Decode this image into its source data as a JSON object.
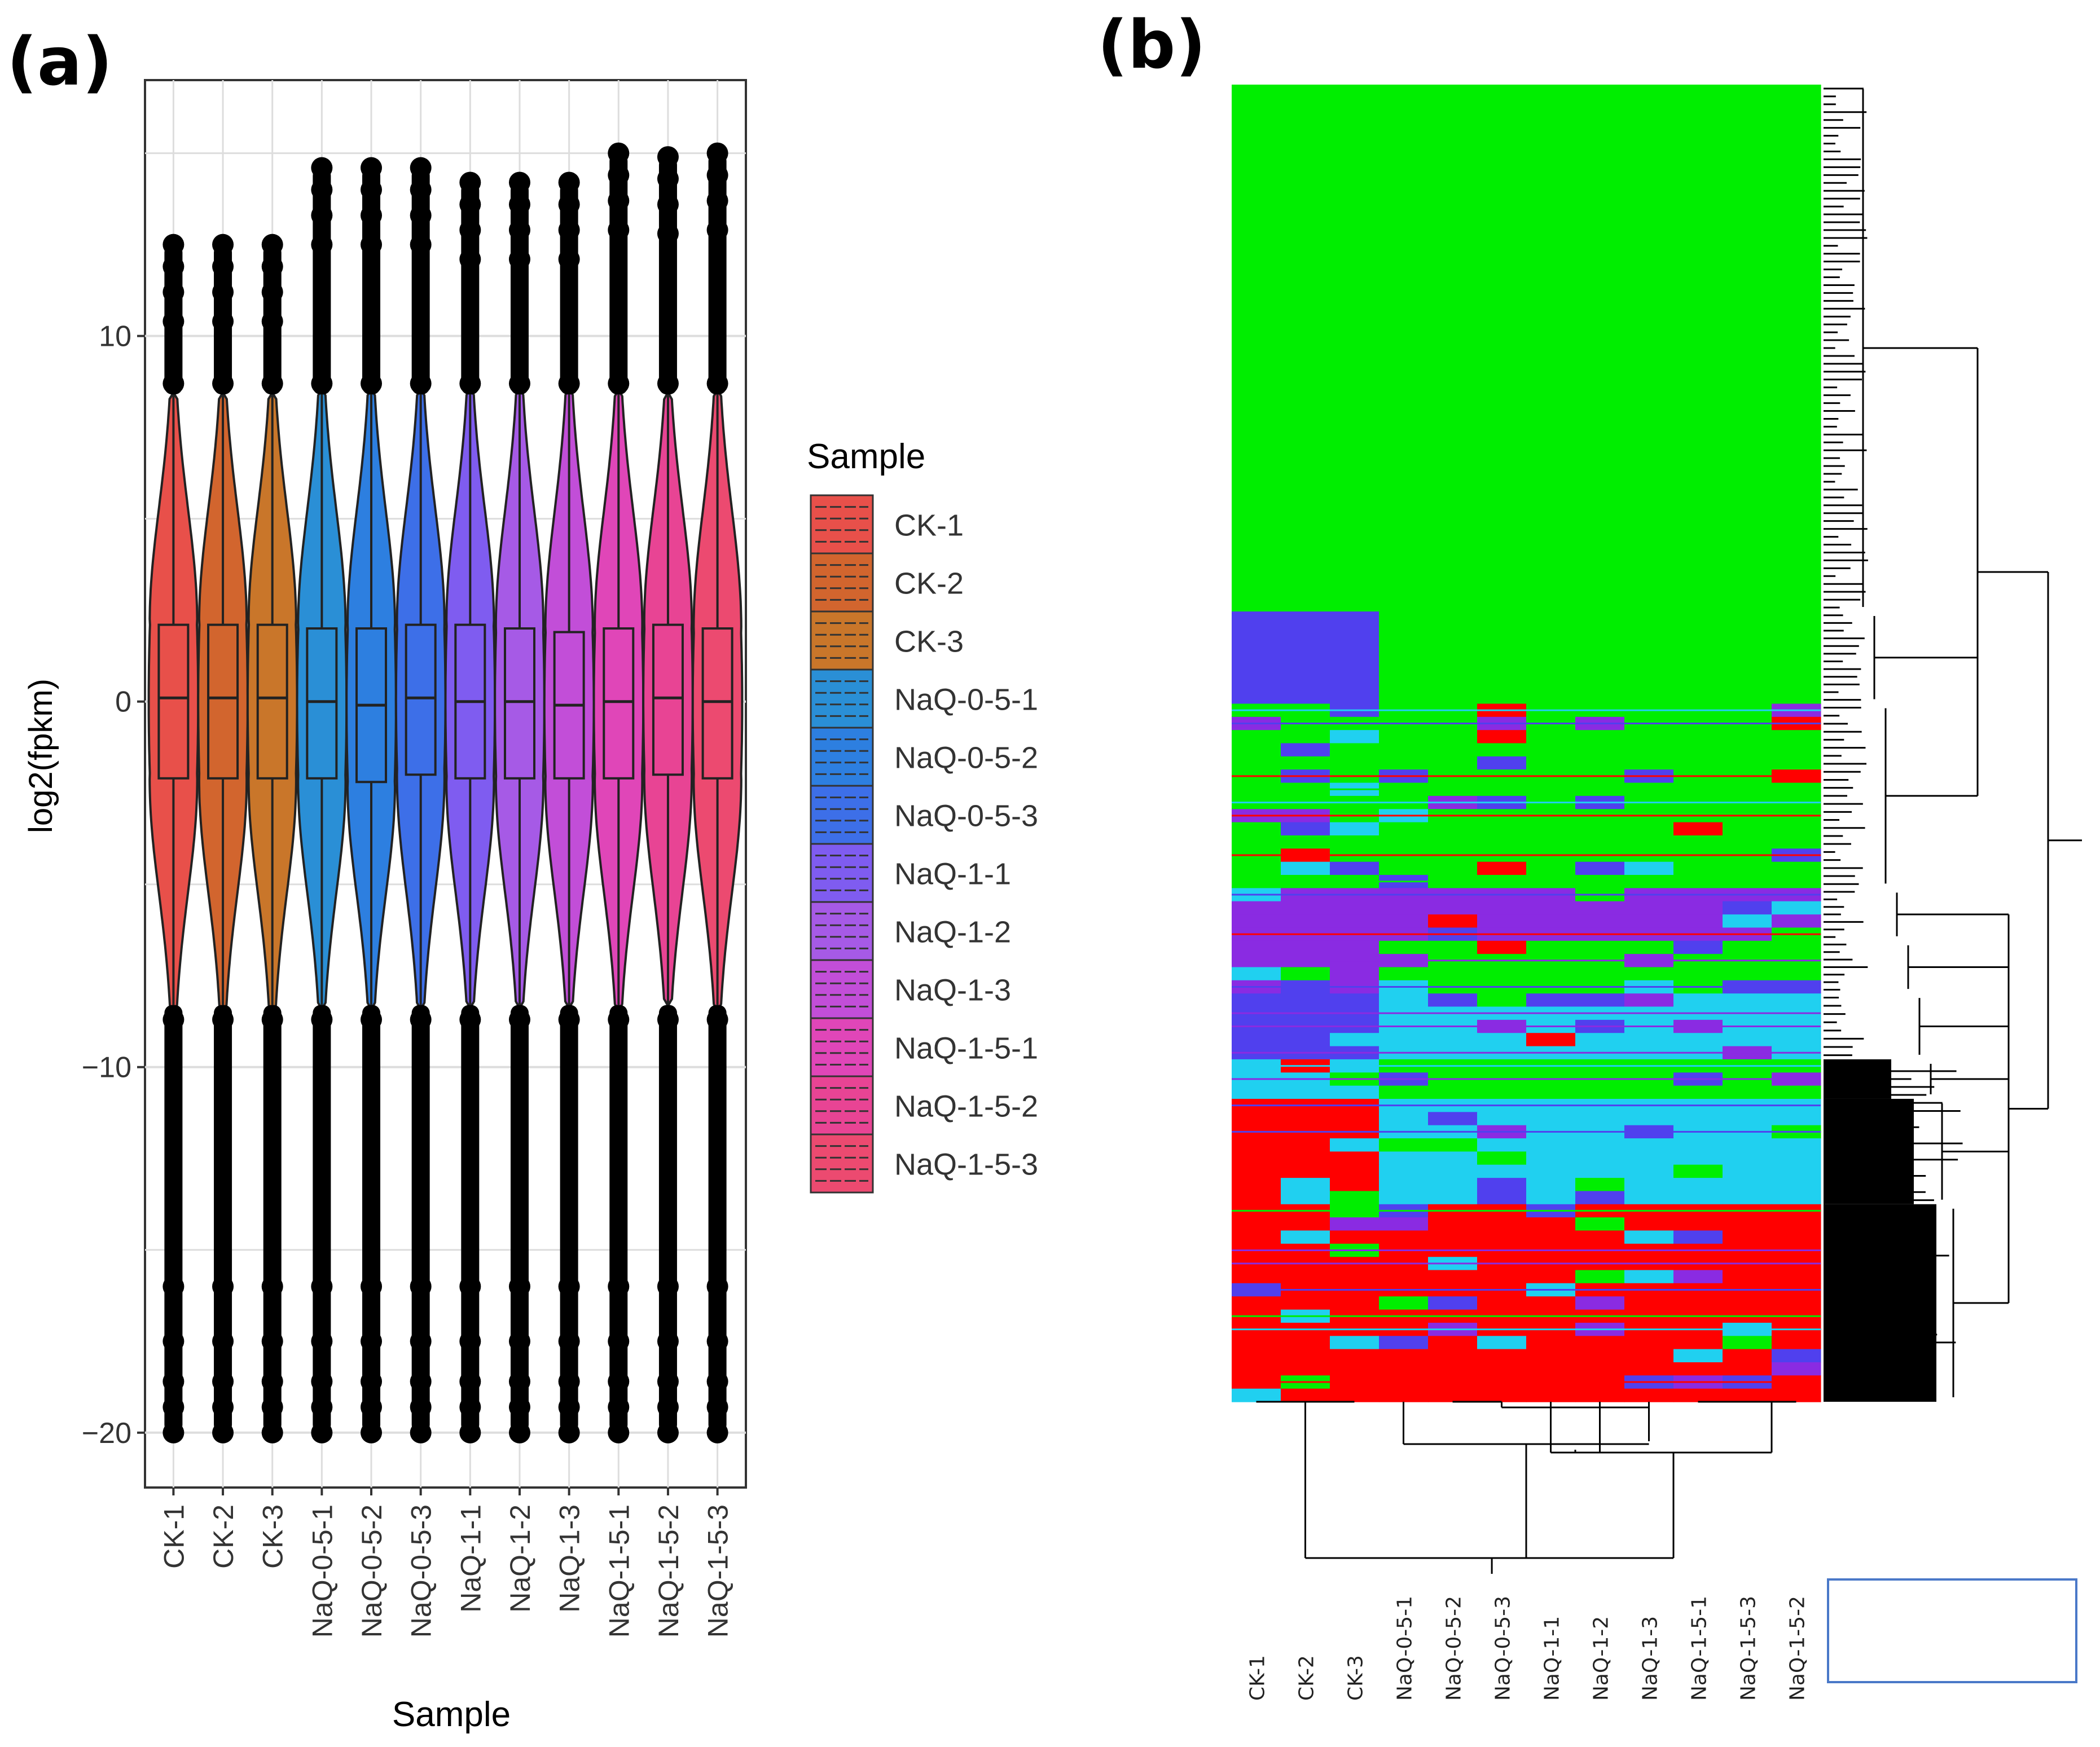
{
  "figure": {
    "label_a": "(a)",
    "label_b": "(b)"
  },
  "chart_data": [
    {
      "type": "violin",
      "panel": "(a)",
      "title": "",
      "xlabel": "Sample",
      "ylabel": "log2(fpkm)",
      "ylim": [
        -21.5,
        17
      ],
      "yticks": [
        10,
        0,
        -10,
        -20
      ],
      "ytick_labels": [
        "10",
        "0",
        "−10",
        "−20"
      ],
      "grid": true,
      "legend_title": "Sample",
      "legend_position": "right",
      "categories": [
        "CK-1",
        "CK-2",
        "CK-3",
        "NaQ-0-5-1",
        "NaQ-0-5-2",
        "NaQ-0-5-3",
        "NaQ-1-1",
        "NaQ-1-2",
        "NaQ-1-3",
        "NaQ-1-5-1",
        "NaQ-1-5-2",
        "NaQ-1-5-3"
      ],
      "colors": [
        "#e8504a",
        "#d2652e",
        "#c9762a",
        "#2a8fd6",
        "#2d7fe0",
        "#3d6fe8",
        "#7f5cf0",
        "#a65ae6",
        "#c24ed8",
        "#e046b8",
        "#e84494",
        "#ec4a70"
      ],
      "series": [
        {
          "name": "CK-1",
          "median": 0.1,
          "q1": -2.1,
          "q3": 2.1,
          "lower_tail": -8.3,
          "upper_tail": 8.4,
          "min": -20,
          "max": 12.5
        },
        {
          "name": "CK-2",
          "median": 0.1,
          "q1": -2.1,
          "q3": 2.1,
          "lower_tail": -8.3,
          "upper_tail": 8.4,
          "min": -20,
          "max": 12.5
        },
        {
          "name": "CK-3",
          "median": 0.1,
          "q1": -2.1,
          "q3": 2.1,
          "lower_tail": -8.3,
          "upper_tail": 8.4,
          "min": -20,
          "max": 12.5
        },
        {
          "name": "NaQ-0-5-1",
          "median": 0.0,
          "q1": -2.1,
          "q3": 2.0,
          "lower_tail": -8.3,
          "upper_tail": 8.4,
          "min": -20,
          "max": 14.6
        },
        {
          "name": "NaQ-0-5-2",
          "median": -0.1,
          "q1": -2.2,
          "q3": 2.0,
          "lower_tail": -8.3,
          "upper_tail": 8.4,
          "min": -20,
          "max": 14.6
        },
        {
          "name": "NaQ-0-5-3",
          "median": 0.1,
          "q1": -2.0,
          "q3": 2.1,
          "lower_tail": -8.3,
          "upper_tail": 8.4,
          "min": -20,
          "max": 14.6
        },
        {
          "name": "NaQ-1-1",
          "median": 0.0,
          "q1": -2.1,
          "q3": 2.1,
          "lower_tail": -8.3,
          "upper_tail": 8.4,
          "min": -20,
          "max": 14.2
        },
        {
          "name": "NaQ-1-2",
          "median": 0.0,
          "q1": -2.1,
          "q3": 2.0,
          "lower_tail": -8.3,
          "upper_tail": 8.4,
          "min": -20,
          "max": 14.2
        },
        {
          "name": "NaQ-1-3",
          "median": -0.1,
          "q1": -2.1,
          "q3": 1.9,
          "lower_tail": -8.3,
          "upper_tail": 8.4,
          "min": -20,
          "max": 14.2
        },
        {
          "name": "NaQ-1-5-1",
          "median": 0.0,
          "q1": -2.1,
          "q3": 2.0,
          "lower_tail": -8.3,
          "upper_tail": 8.4,
          "min": -20,
          "max": 15.0
        },
        {
          "name": "NaQ-1-5-2",
          "median": 0.1,
          "q1": -2.0,
          "q3": 2.1,
          "lower_tail": -8.3,
          "upper_tail": 8.4,
          "min": -20,
          "max": 14.9
        },
        {
          "name": "NaQ-1-5-3",
          "median": 0.0,
          "q1": -2.1,
          "q3": 2.0,
          "lower_tail": -8.3,
          "upper_tail": 8.4,
          "min": -20,
          "max": 15.0
        }
      ]
    },
    {
      "type": "heatmap",
      "panel": "(b)",
      "title": "",
      "columns": [
        "CK-1",
        "CK-2",
        "CK-3",
        "NaQ-0-5-1",
        "NaQ-0-5-2",
        "NaQ-0-5-3",
        "NaQ-1-1",
        "NaQ-1-2",
        "NaQ-1-3",
        "NaQ-1-5-1",
        "NaQ-1-5-3",
        "NaQ-1-5-2"
      ],
      "palette": {
        "green": "#00ee00",
        "red": "#ff0000",
        "blue": "#5040ee",
        "violet": "#8a2be2",
        "cyan": "#20d0f0"
      },
      "row_blocks": [
        {
          "rows": 40,
          "ck": "green",
          "naq": "green"
        },
        {
          "rows": 7,
          "ck": "blue",
          "naq": "green"
        },
        {
          "rows": 14,
          "ck": "green",
          "naq": "green"
        },
        {
          "rows": 4,
          "ck": "violet",
          "naq": "violet"
        },
        {
          "rows": 4,
          "ck": "violet",
          "naq": "green"
        },
        {
          "rows": 5,
          "ck": "blue",
          "naq": "cyan"
        },
        {
          "rows": 3,
          "ck": "cyan",
          "naq": "green"
        },
        {
          "rows": 8,
          "ck": "red",
          "naq": "cyan"
        },
        {
          "rows": 15,
          "ck": "red",
          "naq": "red"
        }
      ]
    }
  ]
}
